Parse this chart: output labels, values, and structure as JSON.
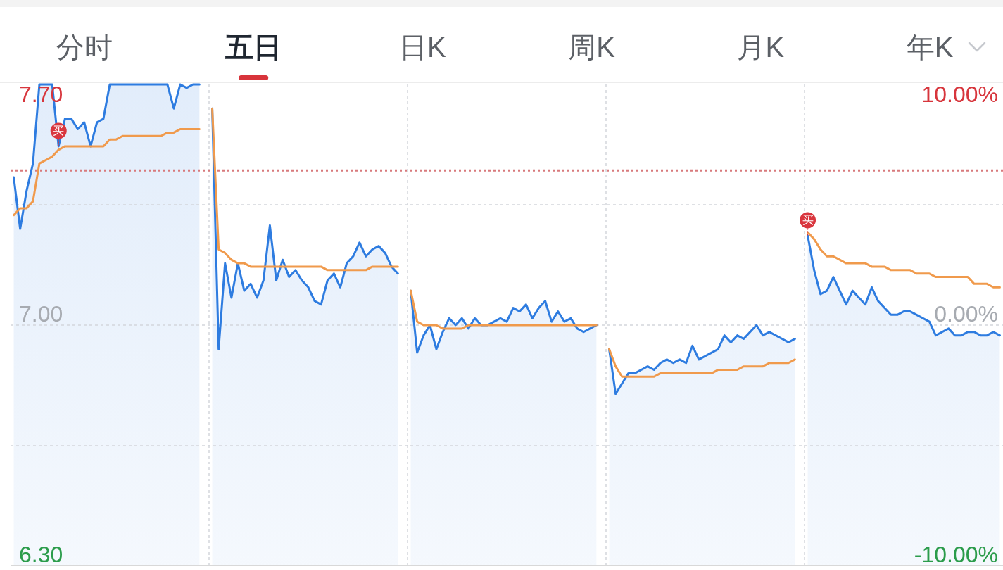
{
  "chart_data": {
    "type": "line",
    "title": "五日",
    "annotations": [
      "分时",
      "日K",
      "周K",
      "月K",
      "年K"
    ],
    "categories": [
      null,
      null,
      null,
      null,
      null,
      null,
      null,
      null,
      null,
      null,
      null,
      null,
      null,
      null,
      null,
      null,
      null,
      null,
      null,
      null,
      null,
      null,
      null,
      null,
      null,
      null,
      null,
      null,
      null,
      null,
      null,
      null,
      null,
      null,
      null,
      null,
      null,
      null,
      null,
      null,
      null,
      null,
      null,
      null,
      null,
      null,
      null,
      null,
      null,
      null,
      null,
      null,
      null,
      null,
      null,
      null,
      null,
      null,
      null,
      null,
      null,
      null,
      null,
      null,
      null,
      null,
      null,
      null,
      null,
      null,
      null,
      null,
      null,
      null,
      null,
      null,
      null,
      null,
      null,
      null,
      null,
      null,
      null,
      null,
      null,
      null,
      null,
      null,
      null,
      null,
      null,
      null,
      null,
      null,
      null,
      null,
      null,
      null,
      null,
      null,
      null,
      null,
      null,
      null,
      null,
      null,
      null,
      null,
      null,
      null,
      null,
      null,
      null,
      null,
      null,
      null,
      null,
      null,
      null,
      null,
      null,
      null,
      null,
      null,
      null,
      null,
      null,
      null,
      null,
      null,
      null,
      null,
      null,
      null,
      null,
      null,
      null,
      null,
      null,
      null,
      null,
      null,
      null,
      null,
      null,
      null,
      null,
      null,
      null,
      null,
      null,
      null,
      null,
      null,
      null
    ],
    "ylim": [
      6.3,
      7.7
    ],
    "yticks": [
      {
        "value": 6.3,
        "label": "6.30"
      },
      {
        "value": 6.65,
        "label": null
      },
      {
        "value": 7.0,
        "label": "7.00"
      },
      {
        "value": 7.35,
        "label": null
      },
      {
        "value": 7.7,
        "label": "7.70"
      }
    ],
    "y2lim": [
      -10,
      10
    ],
    "y2ticks": [
      {
        "value": -10,
        "label": "-10.00%"
      },
      {
        "value": 0,
        "label": "0.00%"
      },
      {
        "value": 10,
        "label": "10.00%"
      }
    ],
    "tick_labels": "y",
    "grid": true,
    "ref_lines": [
      {
        "axis": "y",
        "value": 7.45,
        "color": "#d87a7c",
        "line_style": "dotted"
      }
    ],
    "series": [
      {
        "type": "area",
        "color": "#2e7ce0",
        "values": [
          7.43,
          7.28,
          7.39,
          7.47,
          7.7,
          7.7,
          7.7,
          7.52,
          7.6,
          7.6,
          7.57,
          7.59,
          7.52,
          7.59,
          7.6,
          7.7,
          7.7,
          7.7,
          7.7,
          7.7,
          7.7,
          7.7,
          7.7,
          7.7,
          7.7,
          7.63,
          7.7,
          7.69,
          7.7,
          7.7,
          null,
          7.63,
          6.93,
          7.18,
          7.08,
          7.18,
          7.1,
          7.12,
          7.08,
          7.13,
          7.29,
          7.13,
          7.19,
          7.14,
          7.16,
          7.13,
          7.11,
          7.07,
          7.06,
          7.13,
          7.15,
          7.11,
          7.18,
          7.2,
          7.24,
          7.2,
          7.22,
          7.23,
          7.21,
          7.17,
          7.15,
          null,
          7.1,
          6.92,
          6.97,
          7.0,
          6.93,
          6.98,
          7.02,
          7.0,
          7.02,
          6.99,
          7.02,
          7.0,
          7.0,
          7.01,
          7.02,
          7.01,
          7.05,
          7.04,
          7.06,
          7.02,
          7.05,
          7.07,
          7.01,
          7.04,
          7.01,
          7.02,
          6.99,
          6.98,
          6.99,
          7.0,
          null,
          6.93,
          6.8,
          6.83,
          6.86,
          6.86,
          6.87,
          6.88,
          6.87,
          6.89,
          6.9,
          6.89,
          6.9,
          6.89,
          6.94,
          6.9,
          6.91,
          6.92,
          6.93,
          6.97,
          6.95,
          6.97,
          6.96,
          6.98,
          7.0,
          6.97,
          6.98,
          6.97,
          6.96,
          6.95,
          6.96,
          null,
          7.26,
          7.16,
          7.09,
          7.1,
          7.14,
          7.1,
          7.06,
          7.1,
          7.08,
          7.06,
          7.11,
          7.07,
          7.05,
          7.03,
          7.03,
          7.04,
          7.04,
          7.03,
          7.02,
          7.01,
          6.97,
          6.98,
          6.99,
          6.97,
          6.97,
          6.98,
          6.98,
          6.97,
          6.97,
          6.98,
          6.97
        ],
        "value_labels": [
          null,
          null,
          null,
          null,
          null,
          null,
          null,
          "买",
          null,
          null,
          null,
          null,
          null,
          null,
          null,
          null,
          null,
          null,
          null,
          null,
          null,
          null,
          null,
          null,
          null,
          null,
          null,
          null,
          null,
          null,
          null,
          null,
          null,
          null,
          null,
          null,
          null,
          null,
          null,
          null,
          null,
          null,
          null,
          null,
          null,
          null,
          null,
          null,
          null,
          null,
          null,
          null,
          null,
          null,
          null,
          null,
          null,
          null,
          null,
          null,
          null,
          null,
          null,
          null,
          null,
          null,
          null,
          null,
          null,
          null,
          null,
          null,
          null,
          null,
          null,
          null,
          null,
          null,
          null,
          null,
          null,
          null,
          null,
          null,
          null,
          null,
          null,
          null,
          null,
          null,
          null,
          null,
          null,
          null,
          null,
          null,
          null,
          null,
          null,
          null,
          null,
          null,
          null,
          null,
          null,
          null,
          null,
          null,
          null,
          null,
          null,
          null,
          null,
          null,
          null,
          null,
          null,
          null,
          null,
          null,
          null,
          null,
          null,
          null,
          "买",
          null,
          null,
          null,
          null,
          null,
          null,
          null,
          null,
          null,
          null,
          null,
          null,
          null,
          null,
          null,
          null,
          null,
          null,
          null,
          null,
          null,
          null,
          null,
          null,
          null,
          null,
          null,
          null,
          null,
          null
        ]
      },
      {
        "type": "line",
        "color": "#f09a4c",
        "values": [
          7.32,
          7.34,
          7.34,
          7.36,
          7.47,
          7.48,
          7.49,
          7.51,
          7.52,
          7.52,
          7.52,
          7.52,
          7.52,
          7.52,
          7.52,
          7.54,
          7.54,
          7.55,
          7.55,
          7.55,
          7.55,
          7.55,
          7.55,
          7.55,
          7.56,
          7.56,
          7.57,
          7.57,
          7.57,
          7.57,
          null,
          7.63,
          7.22,
          7.21,
          7.19,
          7.18,
          7.18,
          7.17,
          7.17,
          7.17,
          7.17,
          7.17,
          7.17,
          7.17,
          7.17,
          7.17,
          7.17,
          7.17,
          7.17,
          7.16,
          7.16,
          7.16,
          7.16,
          7.16,
          7.16,
          7.16,
          7.17,
          7.17,
          7.17,
          7.17,
          7.17,
          null,
          7.1,
          7.01,
          7.0,
          7.0,
          7.0,
          6.99,
          6.99,
          6.99,
          6.99,
          7.0,
          7.0,
          7.0,
          7.0,
          7.0,
          7.0,
          7.0,
          7.0,
          7.0,
          7.0,
          7.0,
          7.0,
          7.0,
          7.0,
          7.0,
          7.0,
          7.0,
          7.0,
          7.0,
          7.0,
          7.0,
          null,
          6.93,
          6.88,
          6.85,
          6.85,
          6.85,
          6.85,
          6.85,
          6.85,
          6.86,
          6.86,
          6.86,
          6.86,
          6.86,
          6.86,
          6.86,
          6.86,
          6.86,
          6.87,
          6.87,
          6.87,
          6.87,
          6.88,
          6.88,
          6.88,
          6.88,
          6.89,
          6.89,
          6.89,
          6.89,
          6.9,
          null,
          7.27,
          7.25,
          7.22,
          7.2,
          7.2,
          7.19,
          7.18,
          7.18,
          7.18,
          7.18,
          7.17,
          7.17,
          7.17,
          7.16,
          7.16,
          7.16,
          7.16,
          7.15,
          7.15,
          7.15,
          7.14,
          7.14,
          7.14,
          7.14,
          7.14,
          7.14,
          7.12,
          7.12,
          7.12,
          7.11,
          7.11
        ]
      }
    ]
  }
}
